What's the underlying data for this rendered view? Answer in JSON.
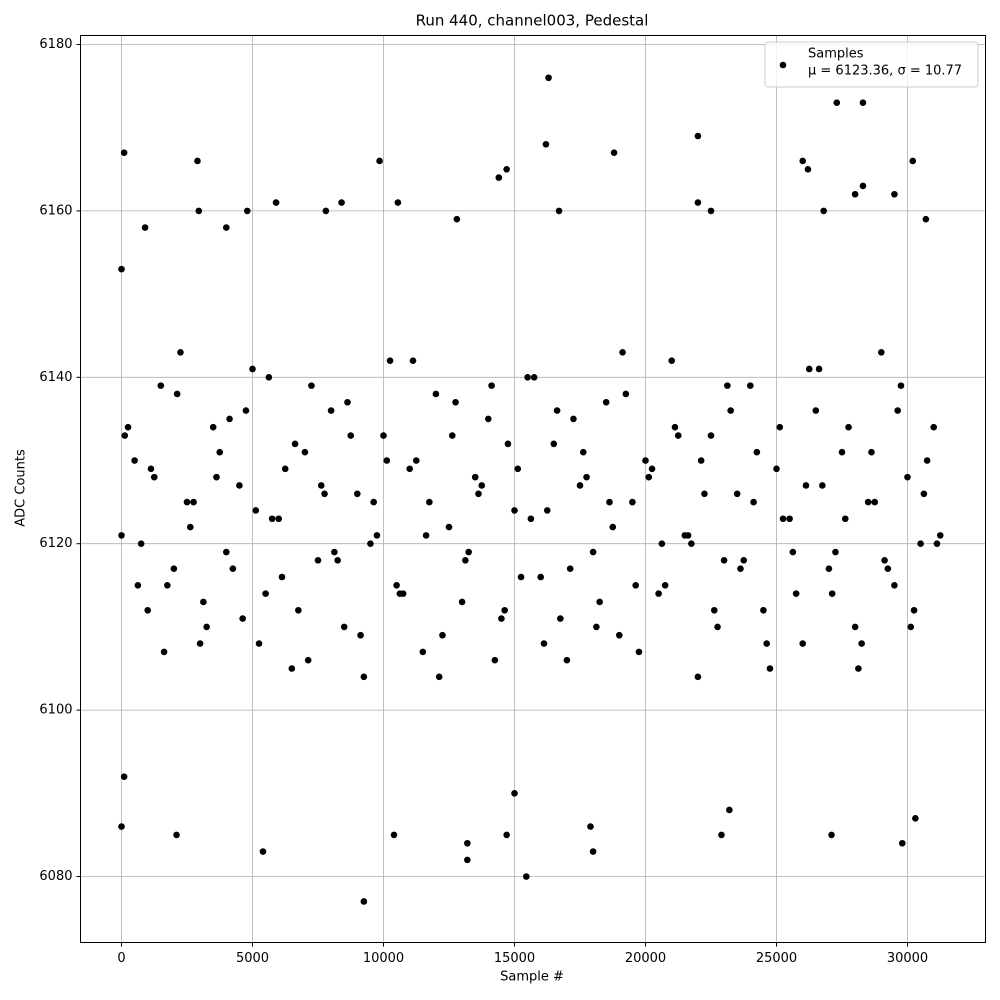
{
  "chart_data": {
    "type": "scatter",
    "title": "Run 440, channel003, Pedestal",
    "xlabel": "Sample #",
    "ylabel": "ADC Counts",
    "xlim": [
      -1565,
      32977
    ],
    "ylim": [
      6072.07,
      6181.08
    ],
    "xticks": [
      0,
      5000,
      10000,
      15000,
      20000,
      25000,
      30000
    ],
    "yticks": [
      6080,
      6100,
      6120,
      6140,
      6160,
      6180
    ],
    "grid": true,
    "legend_position": "upper right",
    "legend_note": "μ = 6123.36, σ = 10.77",
    "series": [
      {
        "name": "Samples",
        "color": "#000000",
        "x": [
          0,
          500,
          1000,
          1500,
          2000,
          2500,
          3000,
          3500,
          4000,
          4500,
          5000,
          5500,
          6000,
          6500,
          7000,
          7500,
          8000,
          8500,
          9000,
          9500,
          10000,
          10500,
          11000,
          11500,
          12000,
          12500,
          13000,
          13500,
          14000,
          14500,
          15000,
          15500,
          16000,
          16500,
          17000,
          17500,
          18000,
          18500,
          19000,
          19500,
          20000,
          20500,
          21000,
          21500,
          22000,
          22500,
          23000,
          23500,
          24000,
          24500,
          25000,
          25500,
          26000,
          26500,
          27000,
          27500,
          28000,
          28500,
          29000,
          29500,
          30000,
          30500,
          31000,
          250,
          750,
          1250,
          1750,
          2250,
          2750,
          3250,
          3750,
          4250,
          4750,
          5250,
          5750,
          6250,
          6750,
          7250,
          7750,
          8250,
          8750,
          9250,
          9750,
          10250,
          10750,
          11250,
          11750,
          12250,
          12750,
          13250,
          13750,
          14250,
          14750,
          15250,
          15750,
          16250,
          16750,
          17250,
          17750,
          18250,
          18750,
          19250,
          19750,
          20250,
          20750,
          21250,
          21750,
          22250,
          22750,
          23250,
          23750,
          24250,
          24750,
          25250,
          25750,
          26250,
          26750,
          27250,
          27750,
          28250,
          28750,
          29250,
          29750,
          30250,
          30750,
          31250,
          125,
          625,
          1125,
          1625,
          2125,
          2625,
          3125,
          3625,
          4125,
          4625,
          5125,
          5625,
          6125,
          6625,
          7125,
          7625,
          8125,
          8625,
          9125,
          9625,
          10125,
          10625,
          11125,
          11625,
          12125,
          12625,
          13125,
          13625,
          14125,
          14625,
          15125,
          15625,
          16125,
          16625,
          17125,
          17625,
          18125,
          18625,
          19125,
          19625,
          20125,
          20625,
          21125,
          21625,
          22125,
          22625,
          23125,
          23625,
          24125,
          24625,
          25125,
          25625,
          26125,
          26625,
          27125,
          27625,
          28125,
          28625,
          29125,
          29625,
          30125,
          30625,
          31125,
          0,
          0,
          100,
          100,
          2900,
          2950,
          2100,
          5400,
          9250,
          9850,
          10400,
          10550,
          13200,
          13200,
          14400,
          14700,
          14700,
          15000,
          15450,
          16200,
          16300,
          16700,
          18000,
          17900,
          18800,
          22000,
          22900,
          23200,
          26200,
          26000,
          27300,
          28300,
          28300,
          28000,
          27100,
          29800,
          30200,
          30700,
          30300,
          29500,
          8400,
          5900,
          7800,
          4800,
          4000,
          900,
          12800,
          22000,
          22500,
          26800
        ],
        "values": [
          6121,
          6130,
          6112,
          6139,
          6117,
          6125,
          6108,
          6134,
          6119,
          6127,
          6141,
          6114,
          6123,
          6105,
          6131,
          6118,
          6136,
          6110,
          6126,
          6120,
          6133,
          6115,
          6129,
          6107,
          6138,
          6122,
          6113,
          6128,
          6135,
          6111,
          6124,
          6140,
          6116,
          6132,
          6106,
          6127,
          6119,
          6137,
          6109,
          6125,
          6130,
          6114,
          6142,
          6121,
          6104,
          6133,
          6118,
          6126,
          6139,
          6112,
          6129,
          6123,
          6108,
          6136,
          6117,
          6131,
          6110,
          6125,
          6143,
          6115,
          6128,
          6120,
          6134,
          6134,
          6120,
          6128,
          6115,
          6143,
          6125,
          6110,
          6131,
          6117,
          6136,
          6108,
          6123,
          6129,
          6112,
          6139,
          6126,
          6118,
          6133,
          6104,
          6121,
          6142,
          6114,
          6130,
          6125,
          6109,
          6137,
          6119,
          6127,
          6106,
          6132,
          6116,
          6140,
          6124,
          6111,
          6135,
          6128,
          6113,
          6122,
          6138,
          6107,
          6129,
          6115,
          6133,
          6120,
          6126,
          6110,
          6136,
          6118,
          6131,
          6105,
          6123,
          6114,
          6141,
          6127,
          6119,
          6134,
          6108,
          6125,
          6117,
          6139,
          6112,
          6130,
          6121,
          6133,
          6115,
          6129,
          6107,
          6138,
          6122,
          6113,
          6128,
          6135,
          6111,
          6124,
          6140,
          6116,
          6132,
          6106,
          6127,
          6119,
          6137,
          6109,
          6125,
          6130,
          6114,
          6142,
          6121,
          6104,
          6133,
          6118,
          6126,
          6139,
          6112,
          6129,
          6123,
          6108,
          6136,
          6117,
          6131,
          6110,
          6125,
          6143,
          6115,
          6128,
          6120,
          6134,
          6121,
          6130,
          6112,
          6139,
          6117,
          6125,
          6108,
          6134,
          6119,
          6127,
          6141,
          6114,
          6123,
          6105,
          6131,
          6118,
          6136,
          6110,
          6126,
          6120,
          6086,
          6153,
          6167,
          6092,
          6166,
          6160,
          6085,
          6083,
          6077,
          6166,
          6085,
          6161,
          6082,
          6084,
          6164,
          6165,
          6085,
          6090,
          6080,
          6168,
          6176,
          6160,
          6083,
          6086,
          6167,
          6169,
          6085,
          6088,
          6165,
          6166,
          6173,
          6173,
          6163,
          6162,
          6085,
          6084,
          6166,
          6159,
          6087,
          6162,
          6161,
          6161,
          6160,
          6160,
          6158,
          6158,
          6159,
          6161,
          6160,
          6160
        ]
      }
    ]
  }
}
